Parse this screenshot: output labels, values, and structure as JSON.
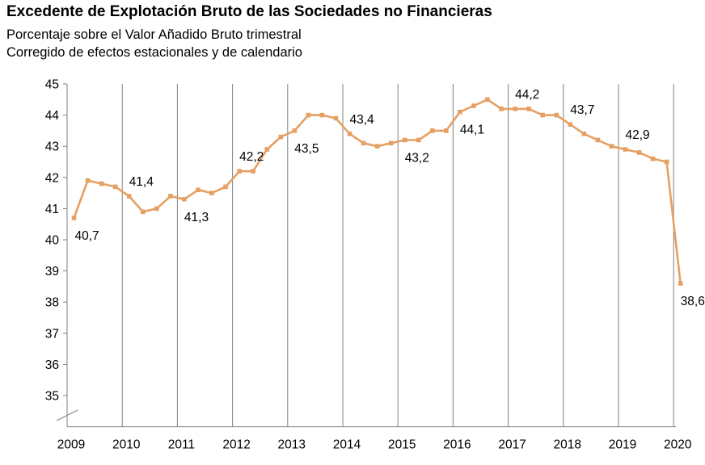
{
  "chart_data": {
    "type": "line",
    "title": "Excedente de Explotación Bruto de las Sociedades no Financieras",
    "subtitle": [
      "Porcentaje sobre el Valor Añadido Bruto trimestral",
      "Corregido de efectos estacionales y de calendario"
    ],
    "xlabel": "",
    "ylabel": "",
    "x_ticks": [
      "2009",
      "2010",
      "2011",
      "2012",
      "2013",
      "2014",
      "2015",
      "2016",
      "2017",
      "2018",
      "2019",
      "2020"
    ],
    "y_ticks": [
      "35",
      "36",
      "37",
      "38",
      "39",
      "40",
      "41",
      "42",
      "43",
      "44",
      "45"
    ],
    "ylim": [
      34,
      45
    ],
    "y_axis_break": true,
    "grid": "vertical-at-year",
    "line_color": "#E5A063",
    "series": [
      {
        "values": [
          40.7,
          41.9,
          41.8,
          41.7,
          41.4,
          40.9,
          41.0,
          41.4,
          41.3,
          41.6,
          41.5,
          41.7,
          42.2,
          42.2,
          42.9,
          43.3,
          43.5,
          44.0,
          44.0,
          43.9,
          43.4,
          43.1,
          43.0,
          43.1,
          43.2,
          43.2,
          43.5,
          43.5,
          44.1,
          44.3,
          44.5,
          44.2,
          44.2,
          44.2,
          44.0,
          44.0,
          43.7,
          43.4,
          43.2,
          43.0,
          42.9,
          42.8,
          42.6,
          42.5,
          38.6
        ]
      }
    ],
    "data_labels": [
      {
        "index": 0,
        "text": "40,7",
        "pos": "below"
      },
      {
        "index": 4,
        "text": "41,4",
        "pos": "above"
      },
      {
        "index": 8,
        "text": "41,3",
        "pos": "below"
      },
      {
        "index": 12,
        "text": "42,2",
        "pos": "above"
      },
      {
        "index": 16,
        "text": "43,5",
        "pos": "below"
      },
      {
        "index": 20,
        "text": "43,4",
        "pos": "above"
      },
      {
        "index": 24,
        "text": "43,2",
        "pos": "below"
      },
      {
        "index": 28,
        "text": "44,1",
        "pos": "below"
      },
      {
        "index": 32,
        "text": "44,2",
        "pos": "above"
      },
      {
        "index": 36,
        "text": "43,7",
        "pos": "above"
      },
      {
        "index": 40,
        "text": "42,9",
        "pos": "above"
      },
      {
        "index": 44,
        "text": "38,6",
        "pos": "below"
      }
    ]
  }
}
